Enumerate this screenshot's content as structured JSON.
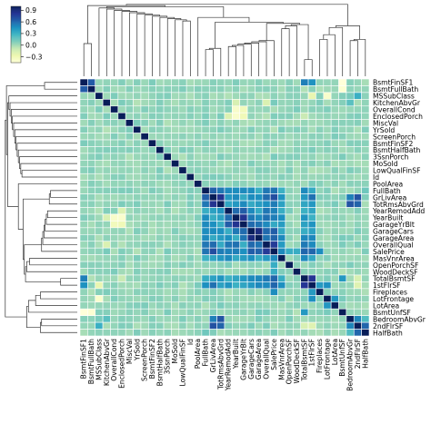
{
  "chart_data": {
    "type": "heatmap",
    "title": "",
    "variables": [
      "BsmtFinSF1",
      "BsmtFullBath",
      "MSSubClass",
      "KitchenAbvGr",
      "OverallCond",
      "EnclosedPorch",
      "MiscVal",
      "YrSold",
      "ScreenPorch",
      "BsmtFinSF2",
      "BsmtHalfBath",
      "3SsnPorch",
      "MoSold",
      "LowQualFinSF",
      "Id",
      "PoolArea",
      "FullBath",
      "GrLivArea",
      "TotRmsAbvGrd",
      "YearRemodAdd",
      "YearBuilt",
      "GarageYrBlt",
      "GarageCars",
      "GarageArea",
      "OverallQual",
      "SalePrice",
      "MasVnrArea",
      "OpenPorchSF",
      "WoodDeckSF",
      "TotalBsmtSF",
      "1stFlrSF",
      "Fireplaces",
      "LotFrontage",
      "LotArea",
      "BsmtUnfSF",
      "BedroomAbvGr",
      "2ndFlrSF",
      "HalfBath"
    ],
    "colorbar": {
      "ticks": [
        "0.9",
        "0.6",
        "0.3",
        "0.0",
        "−0.3"
      ],
      "tick_values": [
        0.9,
        0.6,
        0.3,
        0.0,
        -0.3
      ],
      "vmin": -0.45,
      "vmax": 1.0
    },
    "strong_pairs": [
      [
        "BsmtFinSF1",
        "BsmtFullBath",
        0.65
      ],
      [
        "BsmtFinSF1",
        "TotalBsmtSF",
        0.52
      ],
      [
        "BsmtFinSF1",
        "1stFlrSF",
        0.45
      ],
      [
        "BsmtFinSF1",
        "BsmtUnfSF",
        -0.5
      ],
      [
        "BsmtFullBath",
        "BsmtUnfSF",
        -0.42
      ],
      [
        "BsmtFinSF2",
        "BsmtFinSF1",
        0.1
      ],
      [
        "MSSubClass",
        "LotFrontage",
        -0.39
      ],
      [
        "MSSubClass",
        "2ndFlrSF",
        0.31
      ],
      [
        "MSSubClass",
        "1stFlrSF",
        -0.25
      ],
      [
        "KitchenAbvGr",
        "BedroomAbvGr",
        0.2
      ],
      [
        "OverallCond",
        "YearBuilt",
        -0.38
      ],
      [
        "OverallCond",
        "YearRemodAdd",
        0.07
      ],
      [
        "OverallCond",
        "GarageYrBlt",
        -0.32
      ],
      [
        "EnclosedPorch",
        "YearBuilt",
        -0.39
      ],
      [
        "EnclosedPorch",
        "GarageYrBlt",
        -0.3
      ],
      [
        "EnclosedPorch",
        "YearRemodAdd",
        -0.19
      ],
      [
        "FullBath",
        "GrLivArea",
        0.63
      ],
      [
        "FullBath",
        "TotRmsAbvGrd",
        0.55
      ],
      [
        "FullBath",
        "YearBuilt",
        0.47
      ],
      [
        "FullBath",
        "GarageYrBlt",
        0.48
      ],
      [
        "FullBath",
        "GarageCars",
        0.47
      ],
      [
        "FullBath",
        "OverallQual",
        0.55
      ],
      [
        "FullBath",
        "SalePrice",
        0.56
      ],
      [
        "FullBath",
        "HalfBath",
        0.14
      ],
      [
        "GrLivArea",
        "TotRmsAbvGrd",
        0.83
      ],
      [
        "GrLivArea",
        "OverallQual",
        0.59
      ],
      [
        "GrLivArea",
        "SalePrice",
        0.71
      ],
      [
        "GrLivArea",
        "2ndFlrSF",
        0.69
      ],
      [
        "GrLivArea",
        "1stFlrSF",
        0.57
      ],
      [
        "GrLivArea",
        "BedroomAbvGr",
        0.52
      ],
      [
        "GrLivArea",
        "GarageCars",
        0.47
      ],
      [
        "TotRmsAbvGrd",
        "BedroomAbvGr",
        0.68
      ],
      [
        "TotRmsAbvGrd",
        "2ndFlrSF",
        0.62
      ],
      [
        "TotRmsAbvGrd",
        "SalePrice",
        0.53
      ],
      [
        "YearRemodAdd",
        "YearBuilt",
        0.59
      ],
      [
        "YearRemodAdd",
        "GarageYrBlt",
        0.64
      ],
      [
        "YearRemodAdd",
        "OverallQual",
        0.55
      ],
      [
        "YearRemodAdd",
        "SalePrice",
        0.51
      ],
      [
        "YearBuilt",
        "GarageYrBlt",
        0.83
      ],
      [
        "YearBuilt",
        "GarageCars",
        0.54
      ],
      [
        "YearBuilt",
        "OverallQual",
        0.57
      ],
      [
        "YearBuilt",
        "SalePrice",
        0.52
      ],
      [
        "GarageYrBlt",
        "GarageCars",
        0.59
      ],
      [
        "GarageYrBlt",
        "GarageArea",
        0.56
      ],
      [
        "GarageCars",
        "GarageArea",
        0.88
      ],
      [
        "GarageCars",
        "OverallQual",
        0.6
      ],
      [
        "GarageCars",
        "SalePrice",
        0.64
      ],
      [
        "GarageArea",
        "OverallQual",
        0.56
      ],
      [
        "GarageArea",
        "SalePrice",
        0.62
      ],
      [
        "GarageArea",
        "TotalBsmtSF",
        0.49
      ],
      [
        "GarageArea",
        "1stFlrSF",
        0.49
      ],
      [
        "OverallQual",
        "SalePrice",
        0.79
      ],
      [
        "OverallQual",
        "TotalBsmtSF",
        0.54
      ],
      [
        "OverallQual",
        "1stFlrSF",
        0.48
      ],
      [
        "OverallQual",
        "MasVnrArea",
        0.41
      ],
      [
        "SalePrice",
        "MasVnrArea",
        0.48
      ],
      [
        "SalePrice",
        "TotalBsmtSF",
        0.61
      ],
      [
        "SalePrice",
        "1stFlrSF",
        0.61
      ],
      [
        "SalePrice",
        "Fireplaces",
        0.47
      ],
      [
        "SalePrice",
        "OpenPorchSF",
        0.32
      ],
      [
        "SalePrice",
        "WoodDeckSF",
        0.32
      ],
      [
        "TotalBsmtSF",
        "1stFlrSF",
        0.82
      ],
      [
        "TotalBsmtSF",
        "BsmtUnfSF",
        0.42
      ],
      [
        "1stFlrSF",
        "LotFrontage",
        0.46
      ],
      [
        "1stFlrSF",
        "Fireplaces",
        0.41
      ],
      [
        "1stFlrSF",
        "2ndFlrSF",
        -0.2
      ],
      [
        "LotFrontage",
        "LotArea",
        0.43
      ],
      [
        "BedroomAbvGr",
        "2ndFlrSF",
        0.5
      ],
      [
        "BedroomAbvGr",
        "HalfBath",
        0.23
      ],
      [
        "2ndFlrSF",
        "HalfBath",
        0.61
      ],
      [
        "2ndFlrSF",
        "TotalBsmtSF",
        -0.17
      ],
      [
        "KitchenAbvGr",
        "OverallQual",
        -0.18
      ],
      [
        "KitchenAbvGr",
        "YearBuilt",
        -0.17
      ],
      [
        "EnclosedPorch",
        "TotalBsmtSF",
        -0.1
      ]
    ],
    "grid": false,
    "colormap": "YlGnBu",
    "row_dendrogram": "left",
    "col_dendrogram": "top",
    "colorbar_placement": "top-left"
  }
}
